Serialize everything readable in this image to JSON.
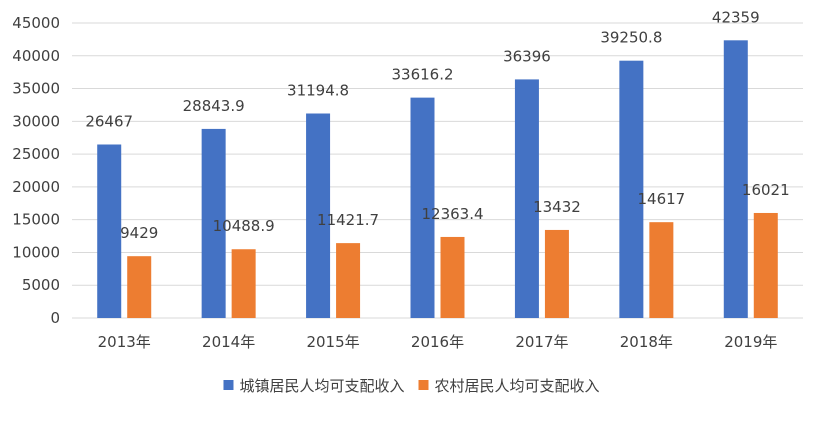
{
  "chart_data": {
    "type": "bar",
    "categories": [
      "2013年",
      "2014年",
      "2015年",
      "2016年",
      "2017年",
      "2018年",
      "2019年"
    ],
    "series": [
      {
        "name": "城镇居民人均可支配收入",
        "values": [
          26467,
          28843.9,
          31194.8,
          33616.2,
          36396,
          39250.8,
          42359
        ],
        "labels": [
          "26467",
          "28843.9",
          "31194.8",
          "33616.2",
          "36396",
          "39250.8",
          "42359"
        ],
        "color": "#4472C4"
      },
      {
        "name": "农村居民人均可支配收入",
        "values": [
          9429,
          10488.9,
          11421.7,
          12363.4,
          13432,
          14617,
          16021
        ],
        "labels": [
          "9429",
          "10488.9",
          "11421.7",
          "12363.4",
          "13432",
          "14617",
          "16021"
        ],
        "color": "#ED7D31"
      }
    ],
    "ylim": [
      0,
      45000
    ],
    "yticks": [
      "0",
      "5000",
      "10000",
      "15000",
      "20000",
      "25000",
      "30000",
      "35000",
      "40000",
      "45000"
    ],
    "grid": true,
    "legend_position": "bottom"
  }
}
